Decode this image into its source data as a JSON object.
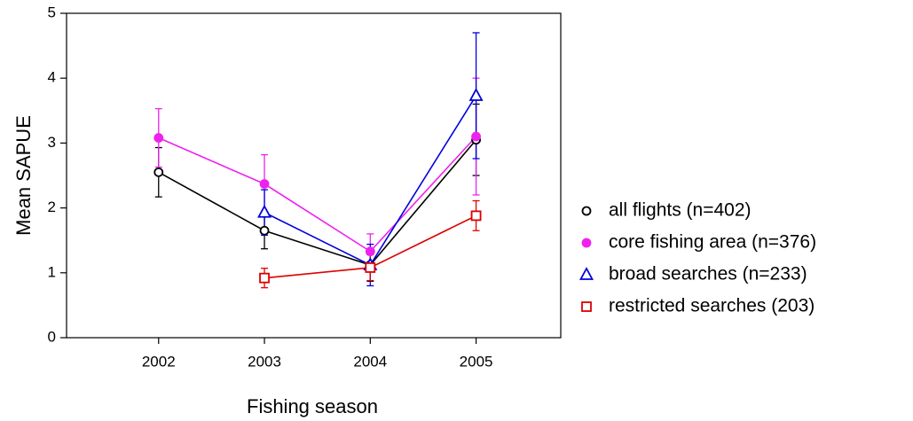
{
  "chart_data": {
    "type": "line",
    "xlabel": "Fishing season",
    "ylabel": "Mean SAPUE",
    "x": [
      2002,
      2003,
      2004,
      2005
    ],
    "xlim": [
      2001.13,
      2005.8
    ],
    "xticks": [
      2002,
      2003,
      2004,
      2005
    ],
    "ylim": [
      0,
      5
    ],
    "yticks": [
      0,
      1,
      2,
      3,
      4,
      5
    ],
    "series": [
      {
        "name": "all flights (n=402)",
        "color": "#000000",
        "marker": "circle-open",
        "values": [
          2.55,
          1.65,
          1.12,
          3.05
        ],
        "errors": [
          0.38,
          0.28,
          0.25,
          0.55
        ]
      },
      {
        "name": "core fishing area (n=376)",
        "color": "#ee22ee",
        "marker": "circle",
        "values": [
          3.08,
          2.37,
          1.33,
          3.1
        ],
        "errors": [
          0.45,
          0.45,
          0.27,
          0.9
        ]
      },
      {
        "name": "broad searches (n=233)",
        "color": "#0000dd",
        "marker": "triangle-open",
        "values": [
          null,
          1.93,
          1.12,
          3.73
        ],
        "errors": [
          null,
          0.35,
          0.32,
          0.97
        ]
      },
      {
        "name": "restricted searches (203)",
        "color": "#dd0000",
        "marker": "square-open",
        "values": [
          null,
          0.92,
          1.08,
          1.88
        ],
        "errors": [
          null,
          0.15,
          0.2,
          0.23
        ]
      }
    ]
  }
}
